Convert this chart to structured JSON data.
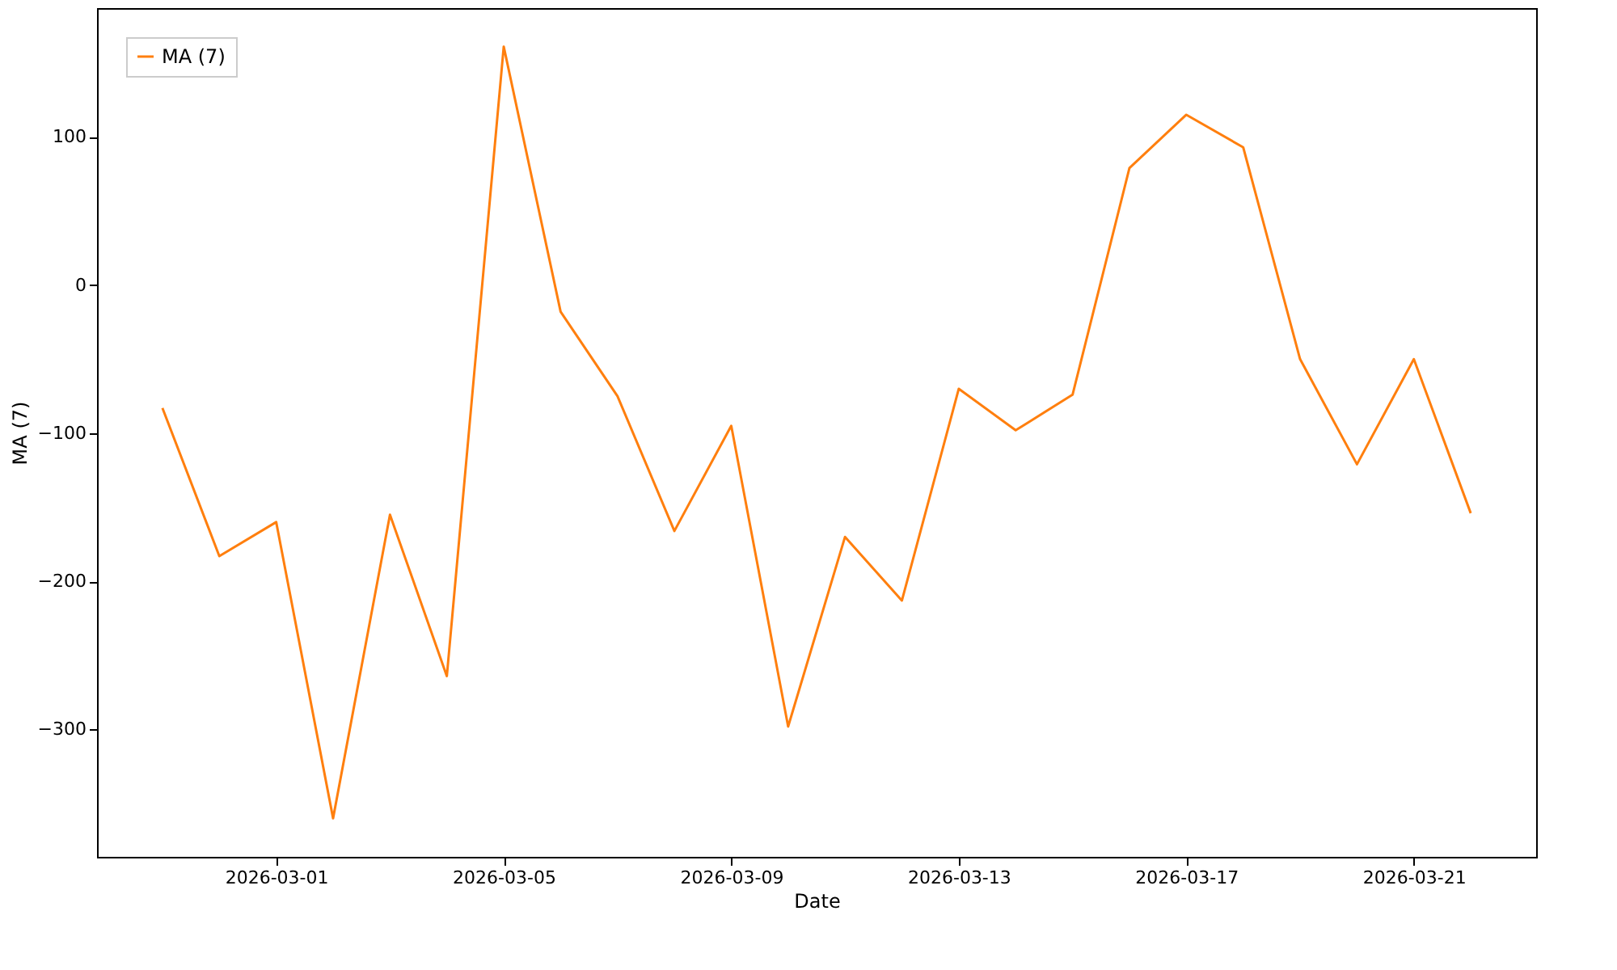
{
  "chart_data": {
    "type": "line",
    "xlabel": "Date",
    "ylabel": "MA (7)",
    "x": [
      "2026-02-27",
      "2026-02-28",
      "2026-03-01",
      "2026-03-02",
      "2026-03-03",
      "2026-03-04",
      "2026-03-05",
      "2026-03-06",
      "2026-03-07",
      "2026-03-08",
      "2026-03-09",
      "2026-03-10",
      "2026-03-11",
      "2026-03-12",
      "2026-03-13",
      "2026-03-14",
      "2026-03-15",
      "2026-03-16",
      "2026-03-17",
      "2026-03-18",
      "2026-03-19",
      "2026-03-20",
      "2026-03-21",
      "2026-03-22"
    ],
    "series": [
      {
        "name": "MA (7)",
        "color": "#ff7f0e",
        "values": [
          -83,
          -183,
          -160,
          -360,
          -155,
          -264,
          161,
          -18,
          -75,
          -166,
          -95,
          -298,
          -170,
          -213,
          -70,
          -98,
          -74,
          79,
          115,
          93,
          -50,
          -121,
          -50,
          -154
        ]
      }
    ],
    "xlim": [
      "2026-02-25T20:24",
      "2026-03-23T03:36"
    ],
    "xticks": [
      "2026-03-01",
      "2026-03-05",
      "2026-03-09",
      "2026-03-13",
      "2026-03-17",
      "2026-03-21"
    ],
    "ylim": [
      -386,
      187
    ],
    "yticks": [
      {
        "value": -300,
        "label": "−300"
      },
      {
        "value": -200,
        "label": "−200"
      },
      {
        "value": -100,
        "label": "−100"
      },
      {
        "value": 0,
        "label": "0"
      },
      {
        "value": 100,
        "label": "100"
      }
    ],
    "legend": "top left",
    "grid": false,
    "line_style": "solid",
    "marker": "none"
  }
}
